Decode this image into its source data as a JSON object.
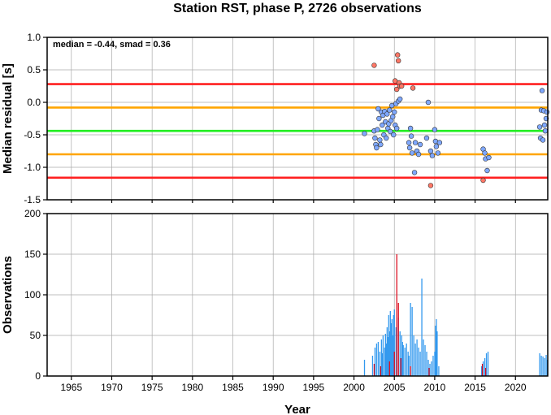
{
  "chart_data": [
    {
      "type": "scatter",
      "title": "Station RST, phase P, 2726 observations",
      "ylabel": "Median residual [s]",
      "annotation": "median = -0.44, smad = 0.36",
      "xlim": [
        1962,
        2024
      ],
      "ylim": [
        -1.5,
        1.0
      ],
      "yticks": [
        "1.0",
        "0.5",
        "0.0",
        "-0.5",
        "-1.0",
        "-1.5"
      ],
      "ytick_values": [
        1.0,
        0.5,
        0.0,
        -0.5,
        -1.0,
        -1.5
      ],
      "grid": true,
      "reference_lines": [
        {
          "value": 0.28,
          "color": "#ff2020"
        },
        {
          "value": -0.08,
          "color": "#ffa500"
        },
        {
          "value": -0.44,
          "color": "#22ee22"
        },
        {
          "value": -0.8,
          "color": "#ffa500"
        },
        {
          "value": -1.16,
          "color": "#ff2020"
        }
      ],
      "series": [
        {
          "color": "#7fa8ff",
          "points": [
            [
              2001.3,
              -0.48
            ],
            [
              2002.5,
              -0.44
            ],
            [
              2002.6,
              -0.55
            ],
            [
              2002.7,
              -0.65
            ],
            [
              2002.8,
              -0.7
            ],
            [
              2002.9,
              -0.42
            ],
            [
              2003.0,
              -0.1
            ],
            [
              2003.1,
              -0.25
            ],
            [
              2003.2,
              -0.58
            ],
            [
              2003.3,
              -0.65
            ],
            [
              2003.4,
              -0.15
            ],
            [
              2003.5,
              -0.35
            ],
            [
              2003.6,
              -0.2
            ],
            [
              2003.7,
              -0.5
            ],
            [
              2003.8,
              -0.14
            ],
            [
              2003.9,
              -0.3
            ],
            [
              2004.0,
              -0.55
            ],
            [
              2004.1,
              -0.18
            ],
            [
              2004.2,
              -0.4
            ],
            [
              2004.3,
              -0.33
            ],
            [
              2004.4,
              -0.12
            ],
            [
              2004.5,
              -0.45
            ],
            [
              2004.6,
              -0.28
            ],
            [
              2004.7,
              -0.05
            ],
            [
              2004.8,
              -0.22
            ],
            [
              2004.9,
              -0.5
            ],
            [
              2005.0,
              -0.15
            ],
            [
              2005.1,
              -0.35
            ],
            [
              2005.2,
              -0.02
            ],
            [
              2005.3,
              -0.4
            ],
            [
              2005.5,
              0.02
            ],
            [
              2005.7,
              0.05
            ],
            [
              2006.8,
              -0.62
            ],
            [
              2006.9,
              -0.7
            ],
            [
              2007.0,
              -0.4
            ],
            [
              2007.1,
              -0.52
            ],
            [
              2007.2,
              -0.78
            ],
            [
              2007.5,
              -1.08
            ],
            [
              2007.6,
              -0.62
            ],
            [
              2007.8,
              -0.75
            ],
            [
              2008.0,
              -0.8
            ],
            [
              2008.2,
              -0.65
            ],
            [
              2009.0,
              -0.55
            ],
            [
              2009.2,
              0.0
            ],
            [
              2009.5,
              -0.75
            ],
            [
              2009.7,
              -0.82
            ],
            [
              2010.0,
              -0.42
            ],
            [
              2010.1,
              -0.6
            ],
            [
              2010.2,
              -0.68
            ],
            [
              2010.4,
              -0.78
            ],
            [
              2010.6,
              -0.62
            ],
            [
              2016.0,
              -0.72
            ],
            [
              2016.2,
              -0.78
            ],
            [
              2016.3,
              -0.87
            ],
            [
              2016.5,
              -1.05
            ],
            [
              2016.7,
              -0.85
            ],
            [
              2023.0,
              -0.38
            ],
            [
              2023.1,
              -0.55
            ],
            [
              2023.2,
              -0.12
            ],
            [
              2023.3,
              0.18
            ],
            [
              2023.4,
              -0.58
            ],
            [
              2023.5,
              -0.13
            ],
            [
              2023.6,
              -0.35
            ],
            [
              2023.7,
              -0.44
            ],
            [
              2023.8,
              -0.25
            ],
            [
              2023.9,
              -0.15
            ]
          ]
        },
        {
          "color": "#ff7766",
          "points": [
            [
              2002.5,
              0.57
            ],
            [
              2005.1,
              0.33
            ],
            [
              2005.3,
              0.2
            ],
            [
              2005.4,
              0.73
            ],
            [
              2005.5,
              0.64
            ],
            [
              2005.6,
              0.3
            ],
            [
              2005.7,
              0.25
            ],
            [
              2005.9,
              0.25
            ],
            [
              2007.3,
              0.22
            ],
            [
              2009.5,
              -1.28
            ],
            [
              2016.0,
              -1.2
            ]
          ]
        }
      ]
    },
    {
      "type": "bar",
      "ylabel": "Observations",
      "xlabel": "Year",
      "xlim": [
        1962,
        2024
      ],
      "ylim": [
        0,
        200
      ],
      "xticks": [
        "1965",
        "1970",
        "1975",
        "1980",
        "1985",
        "1990",
        "1995",
        "2000",
        "2005",
        "2010",
        "2015",
        "2020"
      ],
      "xtick_values": [
        1965,
        1970,
        1975,
        1980,
        1985,
        1990,
        1995,
        2000,
        2005,
        2010,
        2015,
        2020
      ],
      "yticks": [
        "0",
        "50",
        "100",
        "150",
        "200"
      ],
      "ytick_values": [
        0,
        50,
        100,
        150,
        200
      ],
      "grid": true,
      "series": [
        {
          "color": "#3399ee",
          "bars": [
            [
              2001.3,
              20
            ],
            [
              2002.3,
              25
            ],
            [
              2002.6,
              35
            ],
            [
              2002.8,
              40
            ],
            [
              2003.0,
              42
            ],
            [
              2003.2,
              30
            ],
            [
              2003.4,
              45
            ],
            [
              2003.5,
              28
            ],
            [
              2003.6,
              50
            ],
            [
              2003.8,
              35
            ],
            [
              2003.9,
              52
            ],
            [
              2004.0,
              40
            ],
            [
              2004.1,
              60
            ],
            [
              2004.2,
              48
            ],
            [
              2004.3,
              75
            ],
            [
              2004.4,
              55
            ],
            [
              2004.5,
              80
            ],
            [
              2004.6,
              65
            ],
            [
              2004.7,
              70
            ],
            [
              2004.8,
              50
            ],
            [
              2004.9,
              75
            ],
            [
              2005.0,
              82
            ],
            [
              2005.2,
              60
            ],
            [
              2005.5,
              72
            ],
            [
              2005.7,
              55
            ],
            [
              2005.9,
              50
            ],
            [
              2006.0,
              42
            ],
            [
              2006.1,
              38
            ],
            [
              2006.3,
              35
            ],
            [
              2006.5,
              40
            ],
            [
              2006.7,
              30
            ],
            [
              2006.8,
              25
            ],
            [
              2007.0,
              90
            ],
            [
              2007.2,
              85
            ],
            [
              2007.4,
              50
            ],
            [
              2007.6,
              40
            ],
            [
              2007.8,
              45
            ],
            [
              2008.0,
              35
            ],
            [
              2008.2,
              30
            ],
            [
              2008.4,
              120
            ],
            [
              2008.6,
              45
            ],
            [
              2008.8,
              38
            ],
            [
              2009.0,
              30
            ],
            [
              2009.2,
              20
            ],
            [
              2009.4,
              15
            ],
            [
              2009.6,
              18
            ],
            [
              2009.8,
              25
            ],
            [
              2010.0,
              30
            ],
            [
              2010.1,
              62
            ],
            [
              2010.2,
              70
            ],
            [
              2010.3,
              55
            ],
            [
              2010.5,
              12
            ],
            [
              2015.8,
              12
            ],
            [
              2016.0,
              18
            ],
            [
              2016.2,
              22
            ],
            [
              2016.4,
              28
            ],
            [
              2016.6,
              30
            ],
            [
              2023.0,
              28
            ],
            [
              2023.2,
              25
            ],
            [
              2023.4,
              24
            ],
            [
              2023.6,
              22
            ],
            [
              2023.8,
              26
            ],
            [
              2023.95,
              20
            ]
          ]
        },
        {
          "color": "#dd1122",
          "bars": [
            [
              2002.5,
              15
            ],
            [
              2003.3,
              12
            ],
            [
              2004.4,
              18
            ],
            [
              2005.0,
              30
            ],
            [
              2005.3,
              150
            ],
            [
              2005.5,
              90
            ],
            [
              2005.8,
              22
            ],
            [
              2007.0,
              12
            ],
            [
              2009.3,
              10
            ],
            [
              2015.9,
              15
            ],
            [
              2016.3,
              10
            ]
          ]
        }
      ]
    }
  ]
}
